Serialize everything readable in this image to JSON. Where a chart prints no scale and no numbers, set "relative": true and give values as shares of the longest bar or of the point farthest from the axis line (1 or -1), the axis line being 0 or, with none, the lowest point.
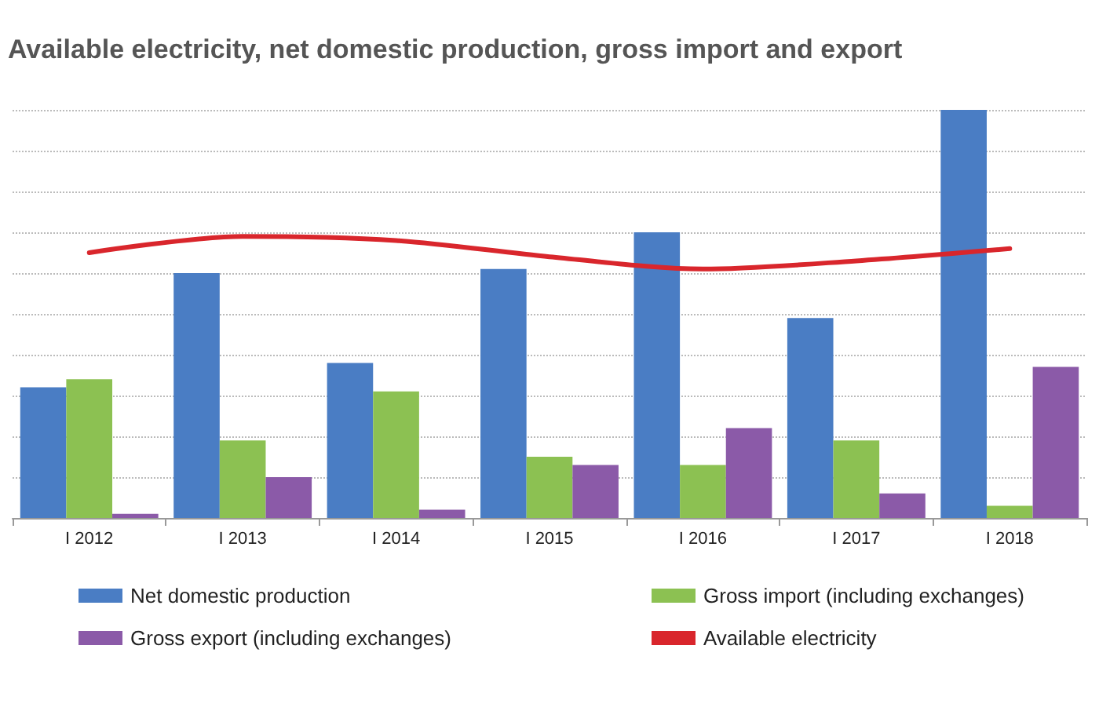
{
  "chart_data": {
    "type": "bar",
    "title": "Available electricity, net domestic production, gross import and export",
    "categories": [
      "I 2012",
      "I 2013",
      "I 2014",
      "I 2015",
      "I 2016",
      "I 2017",
      "I 2018"
    ],
    "relative": true,
    "grid": "y",
    "legend": "bottom",
    "series": [
      {
        "name": "Net domestic production",
        "color": "#4a7dc4",
        "values": [
          0.32,
          0.6,
          0.38,
          0.61,
          0.7,
          0.49,
          1.0
        ]
      },
      {
        "name": "Gross import (including exchanges)",
        "color": "#8cc152",
        "values": [
          0.34,
          0.19,
          0.31,
          0.15,
          0.13,
          0.19,
          0.03
        ]
      },
      {
        "name": "Gross export (including exchanges)",
        "color": "#8b5aa8",
        "values": [
          0.01,
          0.1,
          0.02,
          0.13,
          0.22,
          0.06,
          0.37
        ]
      },
      {
        "name": "Available electricity",
        "type": "line",
        "color": "#d9262c",
        "marker": "none",
        "line_style": "solid",
        "values": [
          0.65,
          0.69,
          0.68,
          0.64,
          0.61,
          0.63,
          0.66
        ]
      }
    ]
  }
}
